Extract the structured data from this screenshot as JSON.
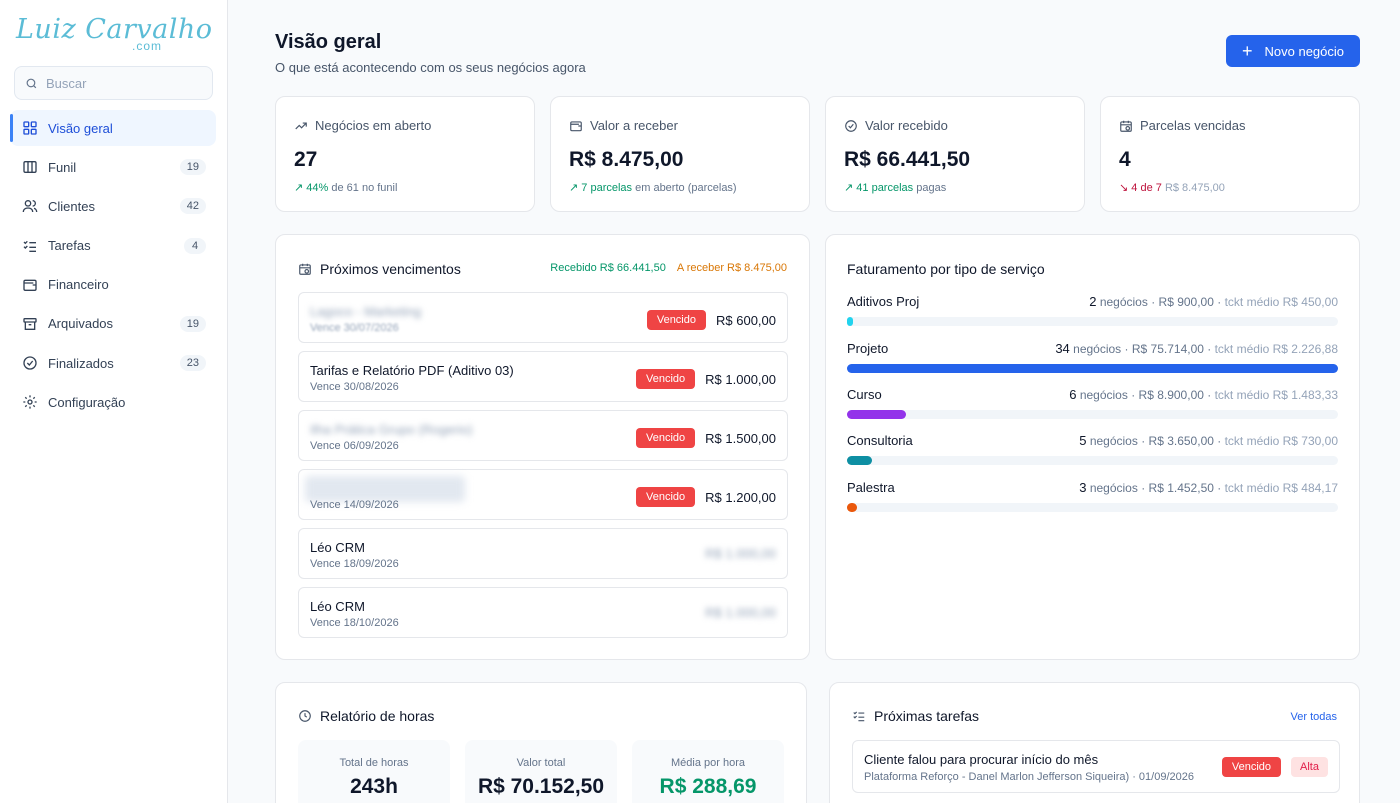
{
  "brand": {
    "name": "Luiz Carvalho",
    "suffix": ".com",
    "color": "#5bbcd6"
  },
  "search": {
    "placeholder": "Buscar"
  },
  "sidebar": {
    "items": [
      {
        "label": "Visão geral",
        "icon": "grid-icon",
        "active": true
      },
      {
        "label": "Funil",
        "icon": "kanban-icon",
        "badge": "19"
      },
      {
        "label": "Clientes",
        "icon": "users-icon",
        "badge": "42"
      },
      {
        "label": "Tarefas",
        "icon": "checklist-icon",
        "badge": "4"
      },
      {
        "label": "Financeiro",
        "icon": "wallet-icon"
      },
      {
        "label": "Arquivados",
        "icon": "archive-icon",
        "badge": "19"
      },
      {
        "label": "Finalizados",
        "icon": "check-circle-icon",
        "badge": "23"
      },
      {
        "label": "Configuração",
        "icon": "gear-icon"
      }
    ]
  },
  "header": {
    "title": "Visão geral",
    "subtitle": "O que está acontecendo com os seus negócios agora",
    "new_button": "Novo negócio",
    "accent": "#2563eb"
  },
  "kpis": [
    {
      "label": "Negócios em aberto",
      "icon": "trending-up-icon",
      "value": "27",
      "foot_highlight": "44%",
      "foot_text": "de 61 no funil",
      "trend": "up"
    },
    {
      "label": "Valor a receber",
      "icon": "wallet-icon",
      "value": "R$ 8.475,00",
      "foot_highlight": "7 parcelas",
      "foot_text": "em aberto (parcelas)",
      "trend": "up"
    },
    {
      "label": "Valor recebido",
      "icon": "check-circle-icon",
      "value": "R$ 66.441,50",
      "foot_highlight": "41 parcelas",
      "foot_text": "pagas",
      "trend": "up"
    },
    {
      "label": "Parcelas vencidas",
      "icon": "calendar-clock-icon",
      "value": "4",
      "foot_highlight": "4 de 7",
      "foot_text": "R$ 8.475,00",
      "trend": "down"
    }
  ],
  "due": {
    "title": "Próximos vencimentos",
    "received_label": "Recebido R$ 66.441,50",
    "to_receive_label": "A receber R$ 8.475,00",
    "items": [
      {
        "name": "Lagoco - Marketing",
        "date": "Vence 30/07/2026",
        "status": "Vencido",
        "amount": "R$ 600,00",
        "blur_name": true
      },
      {
        "name": "Tarifas e Relatório PDF (Aditivo 03)",
        "date": "Vence 30/08/2026",
        "status": "Vencido",
        "amount": "R$ 1.000,00"
      },
      {
        "name": "Ilha Prática Grupo (Rogerio)",
        "date": "Vence 06/09/2026",
        "status": "Vencido",
        "amount": "R$ 1.500,00",
        "blur_name": true
      },
      {
        "name": "",
        "date": "Vence 14/09/2026",
        "status": "Vencido",
        "amount": "R$ 1.200,00",
        "blur_name": true
      },
      {
        "name": "Léo CRM",
        "date": "Vence 18/09/2026",
        "amount": "R$ 1.000,00",
        "blur_amount": true
      },
      {
        "name": "Léo CRM",
        "date": "Vence 18/10/2026",
        "amount": "R$ 1.000,00",
        "blur_amount": true
      }
    ]
  },
  "services": {
    "title": "Faturamento por tipo de serviço",
    "items": [
      {
        "name": "Aditivos Proj",
        "count": "2",
        "count_label": "negócios",
        "total": "R$ 900,00",
        "avg": "tckt médio R$ 450,00",
        "share": 0.012,
        "color": "#22d3ee"
      },
      {
        "name": "Projeto",
        "count": "34",
        "count_label": "negócios",
        "total": "R$ 75.714,00",
        "avg": "tckt médio R$ 2.226,88",
        "share": 1.0,
        "color": "#2563eb"
      },
      {
        "name": "Curso",
        "count": "6",
        "count_label": "negócios",
        "total": "R$ 8.900,00",
        "avg": "tckt médio R$ 1.483,33",
        "share": 0.12,
        "color": "#9333ea"
      },
      {
        "name": "Consultoria",
        "count": "5",
        "count_label": "negócios",
        "total": "R$ 3.650,00",
        "avg": "tckt médio R$ 730,00",
        "share": 0.05,
        "color": "#0e8fa3"
      },
      {
        "name": "Palestra",
        "count": "3",
        "count_label": "negócios",
        "total": "R$ 1.452,50",
        "avg": "tckt médio R$ 484,17",
        "share": 0.02,
        "color": "#ea580c"
      }
    ]
  },
  "hours": {
    "title": "Relatório de horas",
    "stats": [
      {
        "label": "Total de horas",
        "value": "243h"
      },
      {
        "label": "Valor total",
        "value": "R$ 70.152,50"
      },
      {
        "label": "Média por hora",
        "value": "R$ 288,69",
        "color": "#059669"
      }
    ]
  },
  "tasks": {
    "title": "Próximas tarefas",
    "see_all": "Ver todas",
    "items": [
      {
        "title": "Cliente falou para procurar início do mês",
        "sub": "Plataforma Reforço - Danel Marlon Jefferson Siqueira) · 01/09/2026",
        "status": "Vencido",
        "priority": "Alta"
      }
    ]
  }
}
